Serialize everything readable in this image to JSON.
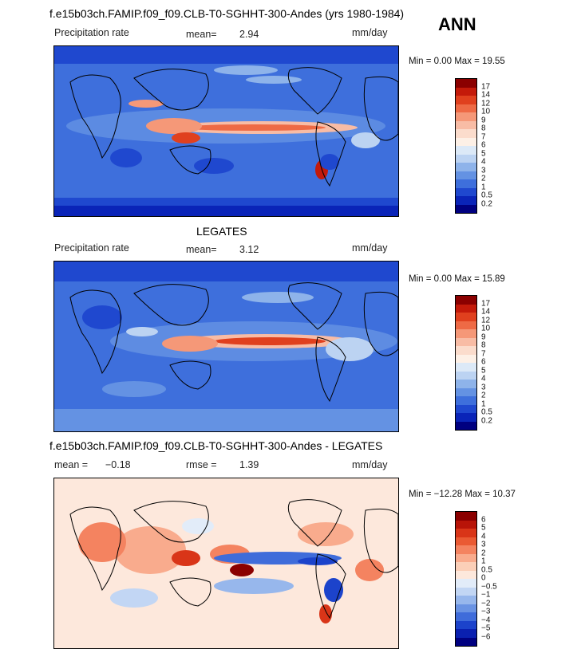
{
  "header": {
    "main_title": "f.e15b03ch.FAMIP.f09_f09.CLB-T0-SGHHT-300-Andes (yrs 1980-1984)",
    "season": "ANN"
  },
  "panels": [
    {
      "title": "",
      "left_label": "Precipitation rate",
      "stat_label": "mean=",
      "stat_value": "2.94",
      "units": "mm/day",
      "min_text": "Min =   0.00 Max =  19.55",
      "colorbar_labels": [
        "17",
        "14",
        "12",
        "10",
        "9",
        "8",
        "7",
        "6",
        "5",
        "4",
        "3",
        "2",
        "1",
        "0.5",
        "0.2"
      ],
      "colorbar_colors": [
        "#8b0000",
        "#c41a0a",
        "#e0401e",
        "#ee6a45",
        "#f59878",
        "#f8bca5",
        "#fbdccc",
        "#fdf0e6",
        "#dce9f7",
        "#bcd3f2",
        "#8eb3ea",
        "#6492e3",
        "#3e6fdc",
        "#1f48cf",
        "#0a24b8",
        "#000080"
      ]
    },
    {
      "title": "LEGATES",
      "left_label": "Precipitation rate",
      "stat_label": "mean=",
      "stat_value": "3.12",
      "units": "mm/day",
      "min_text": "Min =   0.00 Max =  15.89",
      "colorbar_labels": [
        "17",
        "14",
        "12",
        "10",
        "9",
        "8",
        "7",
        "6",
        "5",
        "4",
        "3",
        "2",
        "1",
        "0.5",
        "0.2"
      ],
      "colorbar_colors": [
        "#8b0000",
        "#c41a0a",
        "#e0401e",
        "#ee6a45",
        "#f59878",
        "#f8bca5",
        "#fbdccc",
        "#fdf0e6",
        "#dce9f7",
        "#bcd3f2",
        "#8eb3ea",
        "#6492e3",
        "#3e6fdc",
        "#1f48cf",
        "#0a24b8",
        "#000080"
      ]
    },
    {
      "title": "f.e15b03ch.FAMIP.f09_f09.CLB-T0-SGHHT-300-Andes - LEGATES",
      "left_label": "mean =",
      "stat_label": "rmse =",
      "stat_value": "1.39",
      "left_value": "−0.18",
      "units": "mm/day",
      "min_text": "Min = −12.28 Max =  10.37",
      "colorbar_labels": [
        "6",
        "5",
        "4",
        "3",
        "2",
        "1",
        "0.5",
        "0",
        "−0.5",
        "−1",
        "−2",
        "−3",
        "−4",
        "−5",
        "−6"
      ],
      "colorbar_colors": [
        "#8b0000",
        "#b81408",
        "#d93518",
        "#ea5a33",
        "#f48360",
        "#f9ab8d",
        "#fbcfb8",
        "#fde8dc",
        "#e2ecf9",
        "#c2d6f4",
        "#97b7ec",
        "#6a93e3",
        "#3f6cda",
        "#1c43cb",
        "#0a20b0",
        "#000080"
      ]
    }
  ]
}
